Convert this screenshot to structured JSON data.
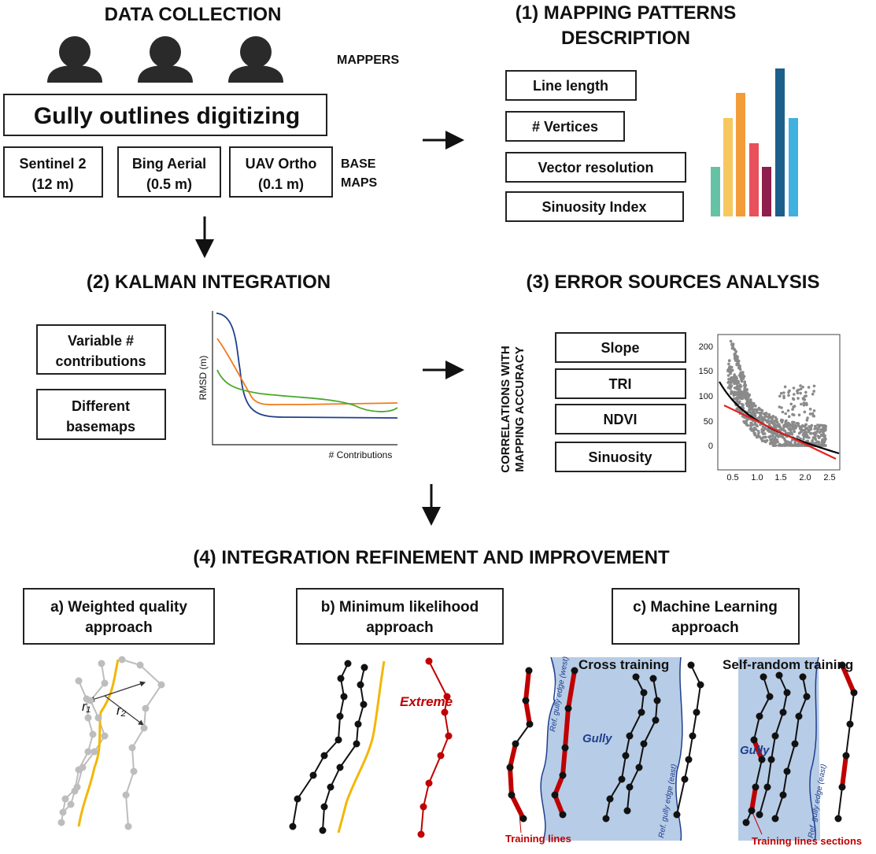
{
  "data_collection": {
    "title": "DATA COLLECTION",
    "mappers": "MAPPERS",
    "task": "Gully outlines digitizing",
    "basemaps": [
      [
        "Sentinel 2",
        "(12 m)"
      ],
      [
        "Bing Aerial",
        "(0.5 m)"
      ],
      [
        "UAV Ortho",
        "(0.1 m)"
      ]
    ],
    "basemaps_label": [
      "BASE",
      "MAPS"
    ]
  },
  "patterns": {
    "title": [
      "(1) MAPPING PATTERNS",
      "DESCRIPTION"
    ],
    "metrics": [
      "Line length",
      "# Vertices",
      "Vector resolution",
      "Sinuosity Index"
    ]
  },
  "kalman": {
    "title": "(2) KALMAN INTEGRATION",
    "factors": [
      [
        "Variable #",
        "contributions"
      ],
      [
        "Different",
        "basemaps"
      ]
    ],
    "plot": {
      "y_label": "RMSD (m)",
      "x_label": "# Contributions"
    }
  },
  "errors": {
    "title": "(3) ERROR SOURCES ANALYSIS",
    "axis_label": [
      "CORRELATIONS WITH",
      "MAPPING ACCURACY"
    ],
    "variables": [
      "Slope",
      "TRI",
      "NDVI",
      "Sinuosity"
    ],
    "plot": {
      "yticks": [
        "0",
        "50",
        "100",
        "150",
        "200"
      ],
      "xticks": [
        "0.5",
        "1.0",
        "1.5",
        "2.0",
        "2.5"
      ]
    }
  },
  "refinement": {
    "title": "(4) INTEGRATION REFINEMENT AND IMPROVEMENT",
    "approaches": [
      [
        "a) Weighted quality",
        "approach"
      ],
      [
        "b) Minimum likelihood",
        "approach"
      ],
      [
        "c) Machine Learning",
        "approach"
      ]
    ],
    "weighted": {
      "radii": [
        "r₁",
        "r₂"
      ]
    },
    "likelihood": {
      "label": "Extreme"
    },
    "ml": {
      "cross_title": "Cross training",
      "self_title": "Self-random training",
      "gully": [
        "Gully",
        "Gully"
      ],
      "edge_west": "Ref. gully edge (west)",
      "edge_east": [
        "Ref. gully edge (east)",
        "Ref. gully edge (east)"
      ],
      "training_lines": "Training lines",
      "training_sections": "Training lines sections"
    }
  }
}
